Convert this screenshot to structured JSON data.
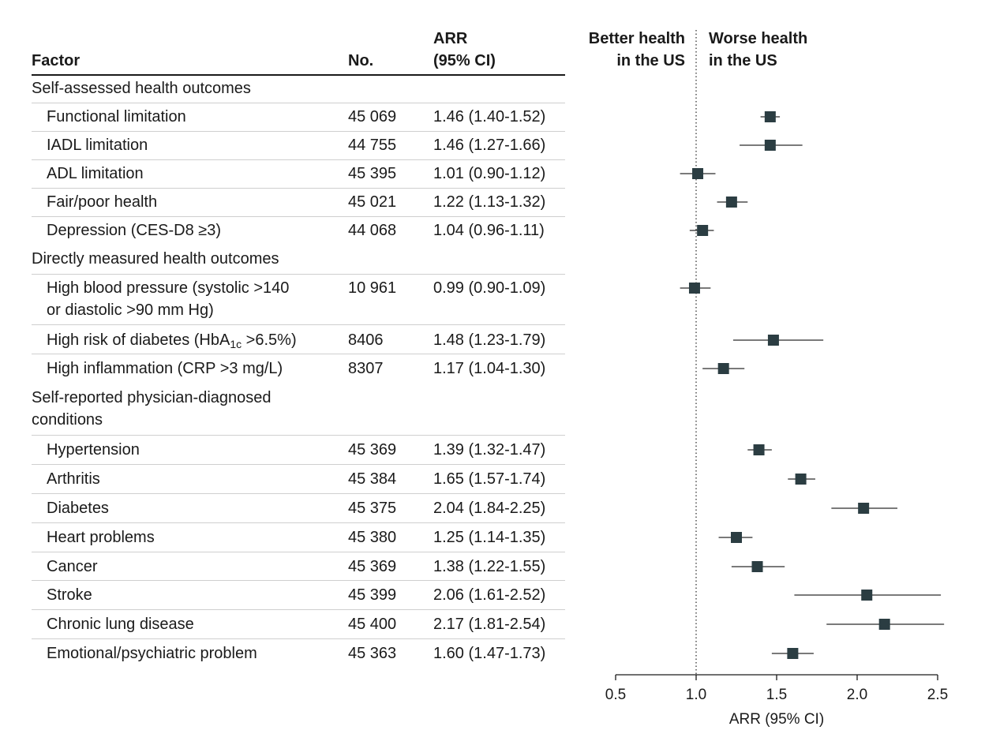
{
  "table": {
    "headers": {
      "factor": "Factor",
      "no": "No.",
      "arr_line1": "ARR",
      "arr_line2": "(95% CI)"
    },
    "sections": [
      {
        "title_lines": [
          "Self-assessed health outcomes"
        ],
        "rows": [
          {
            "factor_lines": [
              "Functional limitation"
            ],
            "no": "45 069",
            "arr": "1.46 (1.40-1.52)"
          },
          {
            "factor_lines": [
              "IADL limitation"
            ],
            "no": "44 755",
            "arr": "1.46 (1.27-1.66)"
          },
          {
            "factor_lines": [
              "ADL limitation"
            ],
            "no": "45 395",
            "arr": "1.01 (0.90-1.12)"
          },
          {
            "factor_lines": [
              "Fair/poor health"
            ],
            "no": "45 021",
            "arr": "1.22 (1.13-1.32)"
          },
          {
            "factor_lines": [
              "Depression (CES-D8 ≥3)"
            ],
            "no": "44 068",
            "arr": "1.04 (0.96-1.11)"
          }
        ]
      },
      {
        "title_lines": [
          "Directly measured health outcomes"
        ],
        "rows": [
          {
            "factor_lines": [
              "High blood pressure (systolic >140",
              "or diastolic >90 mm Hg)"
            ],
            "no": "10 961",
            "arr": "0.99 (0.90-1.09)"
          },
          {
            "factor_lines": [
              "High risk of diabetes (HbA"
            ],
            "sub": "1c",
            "suffix": " >6.5%)",
            "no": "8406",
            "arr": "1.48 (1.23-1.79)"
          },
          {
            "factor_lines": [
              "High inflammation (CRP >3 mg/L)"
            ],
            "no": "8307",
            "arr": "1.17 (1.04-1.30)"
          }
        ]
      },
      {
        "title_lines": [
          "Self-reported physician-diagnosed",
          "conditions"
        ],
        "rows": [
          {
            "factor_lines": [
              "Hypertension"
            ],
            "no": "45 369",
            "arr": "1.39 (1.32-1.47)"
          },
          {
            "factor_lines": [
              "Arthritis"
            ],
            "no": "45 384",
            "arr": "1.65 (1.57-1.74)"
          },
          {
            "factor_lines": [
              "Diabetes"
            ],
            "no": "45 375",
            "arr": "2.04 (1.84-2.25)"
          },
          {
            "factor_lines": [
              "Heart problems"
            ],
            "no": "45 380",
            "arr": "1.25 (1.14-1.35)"
          },
          {
            "factor_lines": [
              "Cancer"
            ],
            "no": "45 369",
            "arr": "1.38 (1.22-1.55)"
          },
          {
            "factor_lines": [
              "Stroke"
            ],
            "no": "45 399",
            "arr": "2.06 (1.61-2.52)"
          },
          {
            "factor_lines": [
              "Chronic lung disease"
            ],
            "no": "45 400",
            "arr": "2.17 (1.81-2.54)"
          },
          {
            "factor_lines": [
              "Emotional/psychiatric problem"
            ],
            "no": "45 363",
            "arr": "1.60 (1.47-1.73)"
          }
        ]
      }
    ]
  },
  "chart_data": {
    "type": "scatter",
    "subtype": "forest-plot",
    "left_label_lines": [
      "Better health",
      "in the US"
    ],
    "right_label_lines": [
      "Worse health",
      "in the US"
    ],
    "xlabel": "ARR (95% CI)",
    "xlim": [
      0.5,
      2.5
    ],
    "xticks": [
      "0.5",
      "1.0",
      "1.5",
      "2.0",
      "2.5"
    ],
    "reference_line": 1.0,
    "marker_color": "#2b3d42",
    "points": [
      {
        "est": 1.46,
        "lo": 1.4,
        "hi": 1.52
      },
      {
        "est": 1.46,
        "lo": 1.27,
        "hi": 1.66
      },
      {
        "est": 1.01,
        "lo": 0.9,
        "hi": 1.12
      },
      {
        "est": 1.22,
        "lo": 1.13,
        "hi": 1.32
      },
      {
        "est": 1.04,
        "lo": 0.96,
        "hi": 1.11
      },
      {
        "est": 0.99,
        "lo": 0.9,
        "hi": 1.09
      },
      {
        "est": 1.48,
        "lo": 1.23,
        "hi": 1.79
      },
      {
        "est": 1.17,
        "lo": 1.04,
        "hi": 1.3
      },
      {
        "est": 1.39,
        "lo": 1.32,
        "hi": 1.47
      },
      {
        "est": 1.65,
        "lo": 1.57,
        "hi": 1.74
      },
      {
        "est": 2.04,
        "lo": 1.84,
        "hi": 2.25
      },
      {
        "est": 1.25,
        "lo": 1.14,
        "hi": 1.35
      },
      {
        "est": 1.38,
        "lo": 1.22,
        "hi": 1.55
      },
      {
        "est": 2.06,
        "lo": 1.61,
        "hi": 2.52
      },
      {
        "est": 2.17,
        "lo": 1.81,
        "hi": 2.54
      },
      {
        "est": 1.6,
        "lo": 1.47,
        "hi": 1.73
      }
    ]
  }
}
